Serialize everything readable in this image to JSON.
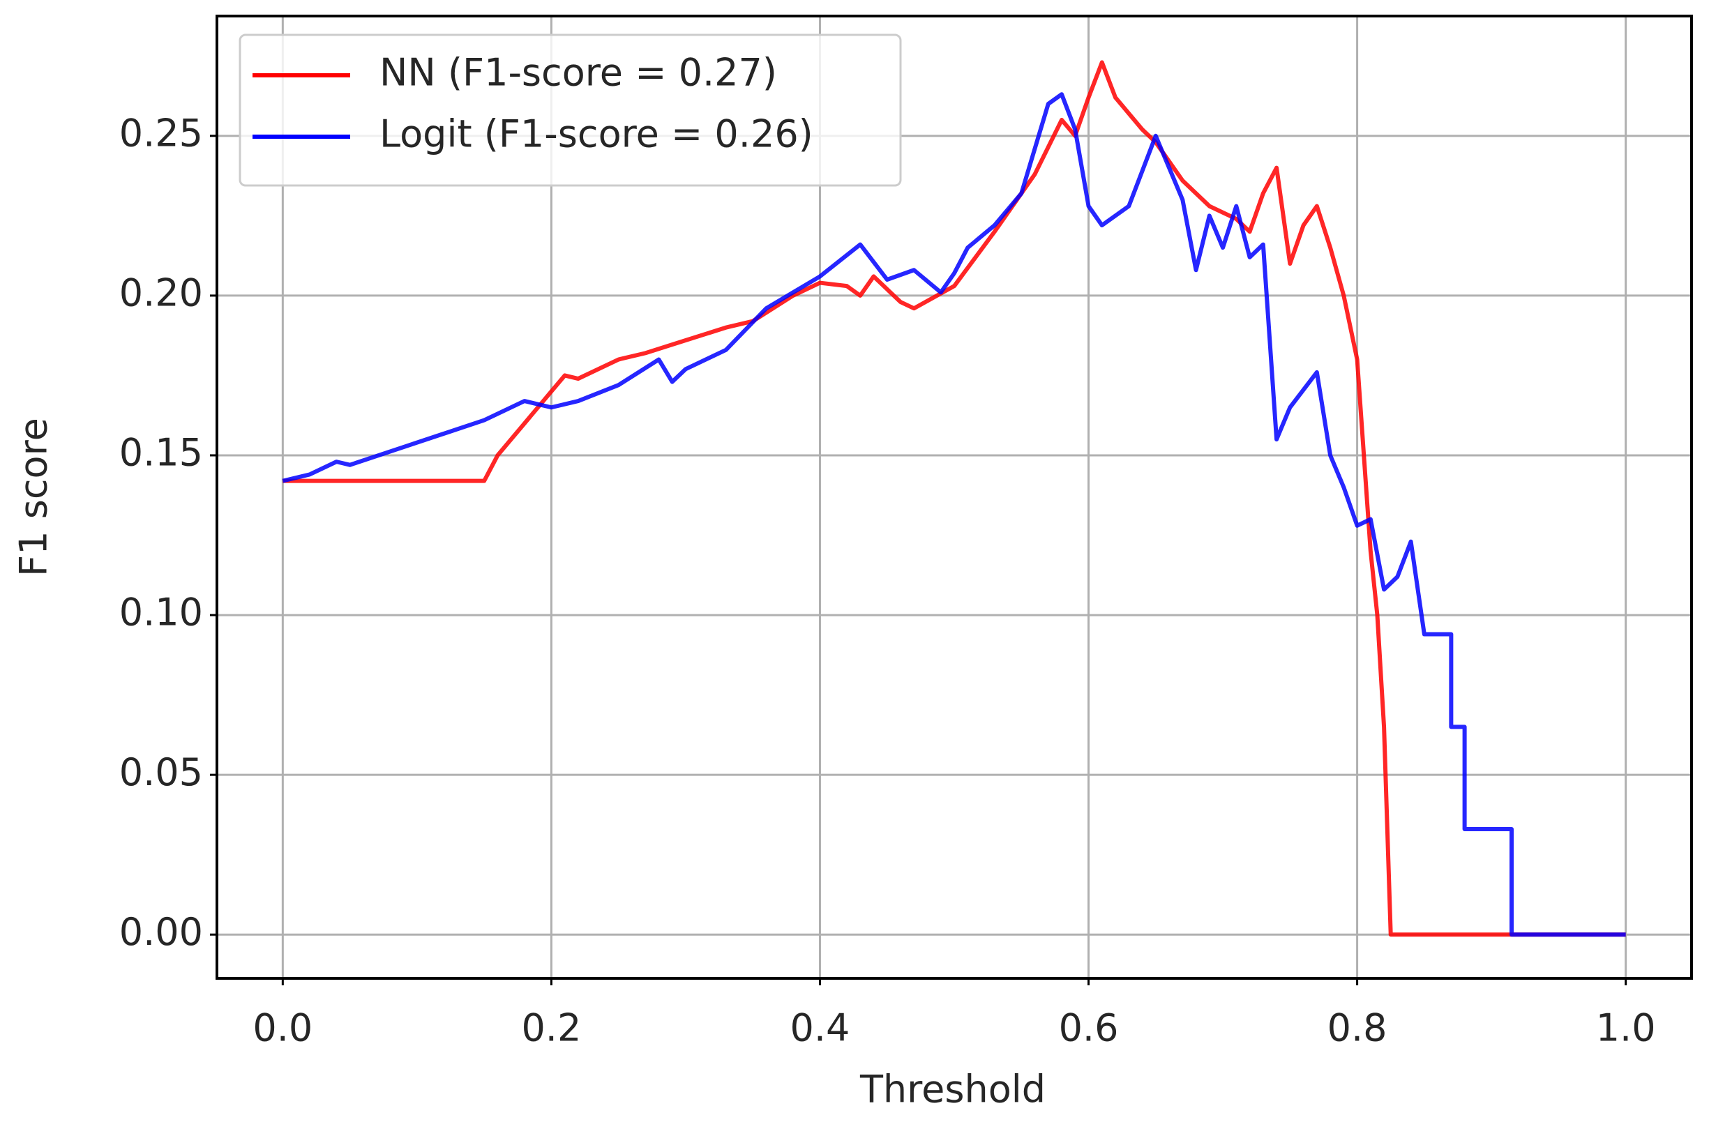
{
  "chart_data": {
    "type": "line",
    "x_label": "Threshold",
    "y_label": "F1 score",
    "xlim": [
      -0.049,
      1.049
    ],
    "ylim": [
      -0.0137,
      0.2875
    ],
    "xticks": [
      {
        "value": 0,
        "label": "0.0"
      },
      0.2,
      0.4,
      0.6,
      0.8,
      {
        "value": 1,
        "label": "1.0"
      }
    ],
    "yticks": [
      {
        "value": 0,
        "label": "0.00"
      },
      {
        "value": 0.05,
        "label": "0.05"
      },
      {
        "value": 0.1,
        "label": "0.10"
      },
      {
        "value": 0.15,
        "label": "0.15"
      },
      {
        "value": 0.2,
        "label": "0.20"
      },
      {
        "value": 0.25,
        "label": "0.25"
      }
    ],
    "grid": true,
    "legend": "upper left",
    "series": [
      {
        "name": "NN (F1-score = 0.27)",
        "color": "#ff0000",
        "x": [
          0.0,
          0.15,
          0.16,
          0.18,
          0.2,
          0.21,
          0.22,
          0.25,
          0.27,
          0.3,
          0.33,
          0.35,
          0.38,
          0.4,
          0.42,
          0.43,
          0.44,
          0.46,
          0.47,
          0.5,
          0.53,
          0.56,
          0.58,
          0.59,
          0.6,
          0.61,
          0.62,
          0.64,
          0.65,
          0.67,
          0.69,
          0.71,
          0.72,
          0.73,
          0.74,
          0.75,
          0.76,
          0.77,
          0.78,
          0.79,
          0.8,
          0.81,
          0.815,
          0.82,
          0.825,
          1.0
        ],
        "values": [
          0.142,
          0.142,
          0.15,
          0.16,
          0.17,
          0.175,
          0.174,
          0.18,
          0.182,
          0.186,
          0.19,
          0.192,
          0.2,
          0.204,
          0.203,
          0.2,
          0.206,
          0.198,
          0.196,
          0.203,
          0.22,
          0.238,
          0.255,
          0.25,
          0.262,
          0.273,
          0.262,
          0.252,
          0.248,
          0.236,
          0.228,
          0.224,
          0.22,
          0.232,
          0.24,
          0.21,
          0.222,
          0.228,
          0.215,
          0.2,
          0.18,
          0.12,
          0.1,
          0.065,
          0.0,
          0.0
        ]
      },
      {
        "name": "Logit (F1-score = 0.26)",
        "color": "#0000ff",
        "x": [
          0.0,
          0.02,
          0.04,
          0.05,
          0.1,
          0.15,
          0.18,
          0.2,
          0.22,
          0.25,
          0.28,
          0.29,
          0.3,
          0.33,
          0.36,
          0.4,
          0.43,
          0.45,
          0.47,
          0.49,
          0.5,
          0.51,
          0.53,
          0.55,
          0.57,
          0.58,
          0.59,
          0.6,
          0.61,
          0.63,
          0.65,
          0.67,
          0.68,
          0.69,
          0.7,
          0.71,
          0.72,
          0.73,
          0.74,
          0.75,
          0.77,
          0.78,
          0.79,
          0.8,
          0.81,
          0.82,
          0.83,
          0.84,
          0.85,
          0.87,
          0.87,
          0.88,
          0.88,
          0.915,
          0.915,
          1.0
        ],
        "values": [
          0.142,
          0.144,
          0.148,
          0.147,
          0.154,
          0.161,
          0.167,
          0.165,
          0.167,
          0.172,
          0.18,
          0.173,
          0.177,
          0.183,
          0.196,
          0.206,
          0.216,
          0.205,
          0.208,
          0.201,
          0.207,
          0.215,
          0.222,
          0.232,
          0.26,
          0.263,
          0.252,
          0.228,
          0.222,
          0.228,
          0.25,
          0.23,
          0.208,
          0.225,
          0.215,
          0.228,
          0.212,
          0.216,
          0.155,
          0.165,
          0.176,
          0.15,
          0.14,
          0.128,
          0.13,
          0.108,
          0.112,
          0.123,
          0.094,
          0.094,
          0.065,
          0.065,
          0.033,
          0.033,
          0.0,
          0.0
        ]
      }
    ]
  }
}
